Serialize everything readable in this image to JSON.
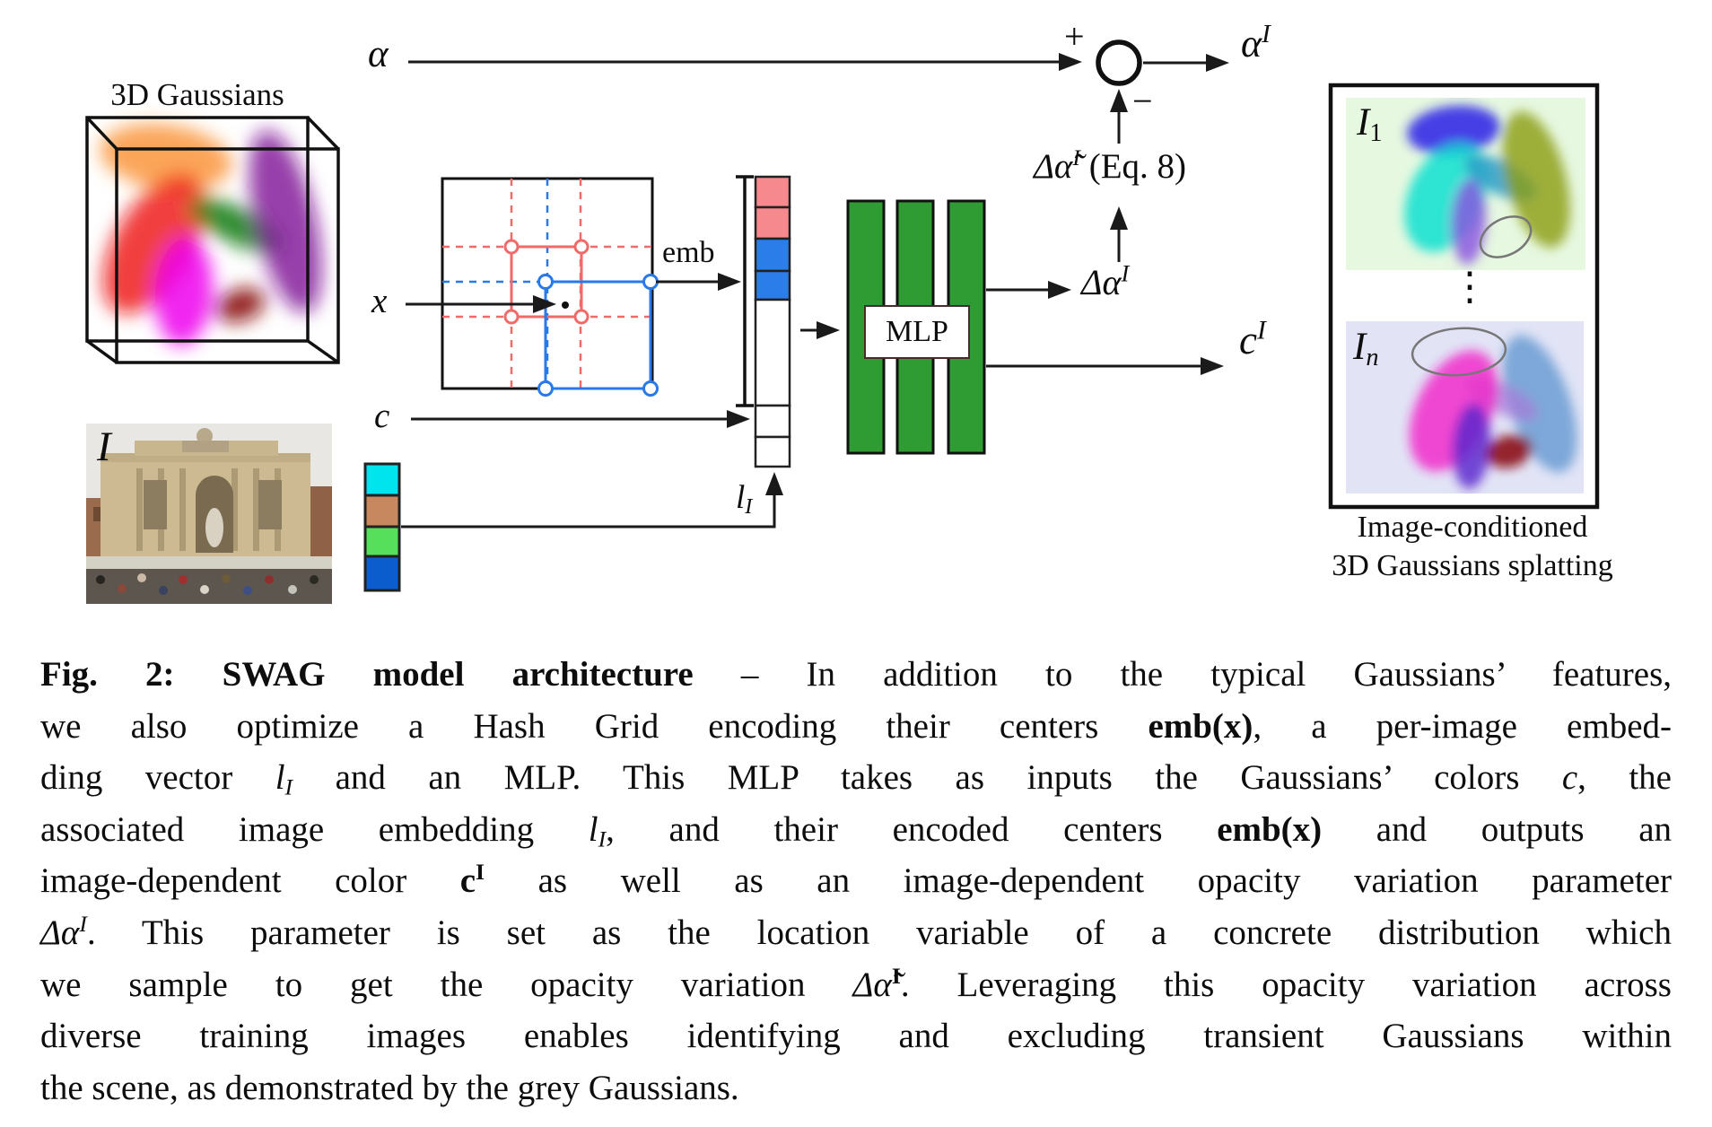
{
  "figure": {
    "labels": {
      "cube_title": "3D Gaussians",
      "alpha": "α",
      "plus": "+",
      "minus": "−",
      "alpha_I": {
        "base": "α",
        "sup": "I"
      },
      "delta_alpha_tilde": {
        "base": "Δα̃",
        "sup": "I",
        "suffix": " (Eq. 8)"
      },
      "delta_alpha": {
        "base": "Δα",
        "sup": "I"
      },
      "c_I": {
        "base": "c",
        "sup": "I"
      },
      "emb": "emb",
      "x": "x",
      "c": "c",
      "l_I": {
        "base": "l",
        "sub": "I"
      },
      "photo_label": "I",
      "mlp": "MLP",
      "panel1_label": {
        "base": "I",
        "sub": "1"
      },
      "panel2_label": {
        "base": "I",
        "sub": "n"
      },
      "vdots": "⋮",
      "right_caption": [
        "Image-conditioned",
        "3D Gaussians splatting"
      ]
    },
    "colors": {
      "mlp_green": "#2e9b33",
      "stack_pink": "#f5898d",
      "stack_blue": "#2b7de9",
      "grid_red": "#f06a6a",
      "grid_blue": "#2979e8",
      "vec_cyan": "#00e4ee",
      "vec_tan": "#c8885f",
      "vec_green": "#55df5a",
      "vec_blue": "#0b5ccc",
      "panel1_bg": "#e6f8e0",
      "panel2_bg": "#e2e4f6",
      "ink": "#1a1a1a"
    }
  },
  "caption": {
    "lines": [
      [
        {
          "t": "Fig. 2: SWAG model architecture",
          "s": "b"
        },
        {
          "t": " – In addition to the typical Gaussians’ features,"
        }
      ],
      [
        {
          "t": "we also optimize a Hash Grid encoding their centers "
        },
        {
          "t": "emb(x)",
          "s": "b"
        },
        {
          "t": ", a per-image embed-"
        }
      ],
      [
        {
          "t": "ding vector "
        },
        {
          "t": "l",
          "s": "i"
        },
        {
          "t": "I",
          "s": "sub i"
        },
        {
          "t": " and an MLP. This MLP takes as inputs the Gaussians’ colors "
        },
        {
          "t": "c",
          "s": "i"
        },
        {
          "t": ", the"
        }
      ],
      [
        {
          "t": "associated image embedding "
        },
        {
          "t": "l",
          "s": "i"
        },
        {
          "t": "I",
          "s": "sub i"
        },
        {
          "t": ", and their encoded centers "
        },
        {
          "t": "emb(x)",
          "s": "b"
        },
        {
          "t": " and outputs an"
        }
      ],
      [
        {
          "t": "image-dependent color "
        },
        {
          "t": "c",
          "s": "b"
        },
        {
          "t": "I",
          "s": "sup b"
        },
        {
          "t": " as well as an image-dependent opacity variation parameter"
        }
      ],
      [
        {
          "t": "Δα",
          "s": "i"
        },
        {
          "t": "I",
          "s": "sup i"
        },
        {
          "t": ". This parameter is set as the location variable of a concrete distribution which"
        }
      ],
      [
        {
          "t": "we sample to get the opacity variation "
        },
        {
          "t": "Δα̃",
          "s": "i"
        },
        {
          "t": "I",
          "s": "sup b"
        },
        {
          "t": ". Leveraging this opacity variation across"
        }
      ],
      [
        {
          "t": "diverse training images enables identifying and excluding transient Gaussians within"
        }
      ],
      [
        {
          "t": "the scene, as demonstrated by the grey Gaussians."
        }
      ]
    ]
  }
}
